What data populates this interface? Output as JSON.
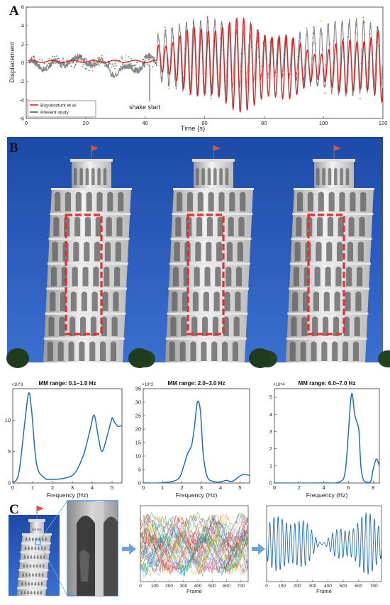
{
  "panel_a": {
    "letter": "A",
    "shake_label": "shake start",
    "legend": [
      "Buyukozturk et al.",
      "Present study"
    ]
  },
  "panel_b": {
    "letter": "B"
  },
  "panel_c": {
    "letter": "C"
  },
  "colors": {
    "reference": "#d62728",
    "present": "#5a5a5a",
    "spectrum": "#1f6fb4",
    "window": "#e03030",
    "sky": "#1f4fb0",
    "arrow": "#6fa3d8"
  },
  "chart_data": [
    {
      "type": "line",
      "title": "",
      "xlabel": "Time (s)",
      "ylabel": "Displacement",
      "xlim": [
        0,
        120
      ],
      "ylim": [
        -6,
        6
      ],
      "xticks": [
        0,
        20,
        40,
        60,
        80,
        100,
        120
      ],
      "yticks": [
        -6,
        -4,
        -2,
        0,
        2,
        4,
        6
      ],
      "annotation": {
        "text": "shake start",
        "x": 44
      },
      "series": [
        {
          "name": "Buyukozturk et al.",
          "color": "#d62728",
          "description_values": {
            "pre_shake_level": 0.2,
            "peak_max": 4.8,
            "trough_min": -5.3
          }
        },
        {
          "name": "Present study",
          "color": "#5a5a5a",
          "description_values": {
            "pre_shake_range": [
              -1.2,
              1.0
            ],
            "post_shake_range": [
              -4.0,
              5.0
            ]
          }
        }
      ],
      "legend_position": "bottom-left"
    },
    {
      "type": "line",
      "title": "MM range: 0.1–1.0 Hz",
      "xlabel": "Frequency (Hz)",
      "ylabel": "",
      "exponent_label": "×10^3",
      "xlim": [
        0,
        5.5
      ],
      "ylim": [
        0,
        15
      ],
      "xticks": [
        0,
        1,
        2,
        3,
        4,
        5
      ],
      "yticks": [
        0,
        5,
        10
      ],
      "x": [
        0,
        0.3,
        0.6,
        0.8,
        0.95,
        1.2,
        1.6,
        2.0,
        2.5,
        3.0,
        3.3,
        3.6,
        3.9,
        4.1,
        4.3,
        4.5,
        4.8,
        5.0,
        5.1,
        5.3,
        5.5
      ],
      "y": [
        0.1,
        1.5,
        9.5,
        14.3,
        11.5,
        3.0,
        0.8,
        0.6,
        0.7,
        1.2,
        2.5,
        4.8,
        8.5,
        10.8,
        7.5,
        5.0,
        8.0,
        10.3,
        9.8,
        9.0,
        9.2
      ]
    },
    {
      "type": "line",
      "title": "MM range: 2.0–3.0 Hz",
      "xlabel": "Frequency (Hz)",
      "ylabel": "",
      "exponent_label": "×10^2",
      "xlim": [
        0,
        5.5
      ],
      "ylim": [
        0,
        35
      ],
      "xticks": [
        0,
        1,
        2,
        3,
        4,
        5
      ],
      "yticks": [
        0,
        5,
        10,
        15,
        20,
        25,
        30,
        35
      ],
      "x": [
        0,
        1.0,
        1.8,
        2.1,
        2.3,
        2.5,
        2.65,
        2.8,
        2.95,
        3.1,
        3.3,
        3.6,
        4.0,
        4.3,
        4.6,
        5.0,
        5.2,
        5.5
      ],
      "y": [
        0,
        0.1,
        1.5,
        6.5,
        11.0,
        14.0,
        21.0,
        30.0,
        27.0,
        11.0,
        2.5,
        0.6,
        0.4,
        1.0,
        0.6,
        2.6,
        3.2,
        2.8
      ]
    },
    {
      "type": "line",
      "title": "MM range: 6.0–7.0 Hz",
      "xlabel": "Frequency (Hz)",
      "ylabel": "",
      "exponent_label": "×10^4",
      "xlim": [
        0,
        8.5
      ],
      "ylim": [
        0,
        5.5
      ],
      "xticks": [
        0,
        2,
        4,
        6,
        8
      ],
      "yticks": [
        0,
        1,
        2,
        3,
        4,
        5
      ],
      "x": [
        0,
        4.0,
        5.2,
        5.7,
        5.95,
        6.15,
        6.3,
        6.5,
        6.7,
        6.85,
        7.0,
        7.2,
        7.5,
        7.8,
        8.0,
        8.25,
        8.5
      ],
      "y": [
        0,
        0,
        0.05,
        0.5,
        2.5,
        4.6,
        5.2,
        4.0,
        3.5,
        3.0,
        1.0,
        0.2,
        0.05,
        0.1,
        0.8,
        1.4,
        1.0
      ]
    },
    {
      "type": "line",
      "title": "",
      "xlabel": "Frame",
      "ylabel": "",
      "xlim": [
        0,
        750
      ],
      "xticks": [
        0,
        100,
        200,
        300,
        400,
        500,
        600,
        700
      ],
      "description": "many overlaid colored displacement traces"
    },
    {
      "type": "line",
      "title": "",
      "xlabel": "Frame",
      "ylabel": "",
      "xlim": [
        0,
        750
      ],
      "xticks": [
        0,
        100,
        200,
        300,
        400,
        500,
        600,
        700
      ],
      "description": "single blue oscillating displacement trace"
    }
  ]
}
